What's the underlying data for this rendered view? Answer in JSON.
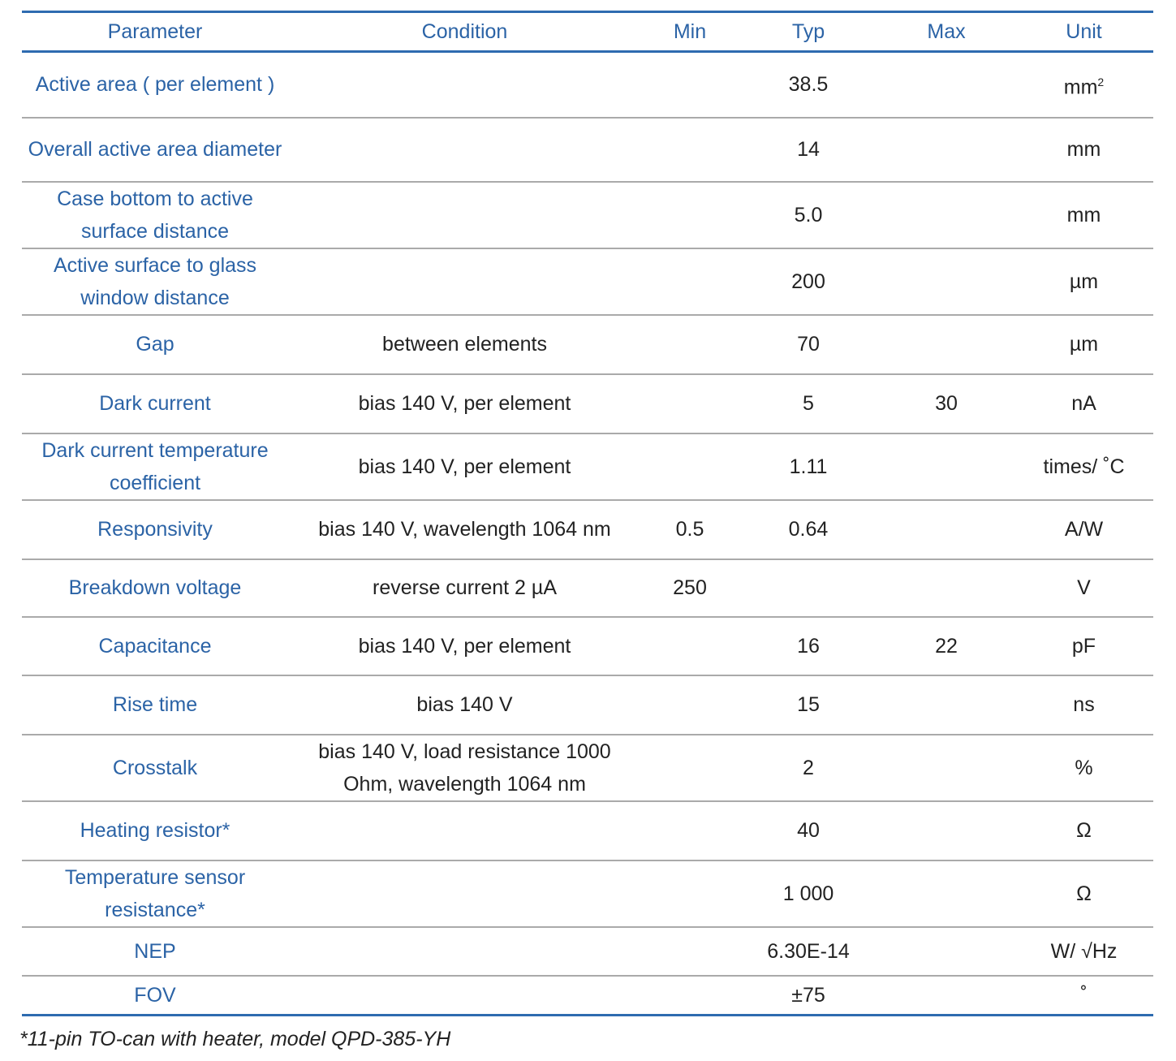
{
  "headers": [
    "Parameter",
    "Condition",
    "Min",
    "Typ",
    "Max",
    "Unit"
  ],
  "rows": [
    {
      "parameter": "Active area ( per element )",
      "condition": "",
      "min": "",
      "typ": "38.5",
      "max": "",
      "unit": "mm",
      "unit_sup": "2"
    },
    {
      "parameter": "Overall active area diameter",
      "condition": "",
      "min": "",
      "typ": "14",
      "max": "",
      "unit": "mm"
    },
    {
      "parameter": "Case bottom to active surface distance",
      "condition": "",
      "min": "",
      "typ": "5.0",
      "max": "",
      "unit": "mm"
    },
    {
      "parameter": "Active surface to glass window distance",
      "condition": "",
      "min": "",
      "typ": "200",
      "max": "",
      "unit": "µm"
    },
    {
      "parameter": "Gap",
      "condition": "between elements",
      "min": "",
      "typ": "70",
      "max": "",
      "unit": "µm"
    },
    {
      "parameter": "Dark current",
      "condition": "bias 140 V, per element",
      "min": "",
      "typ": "5",
      "max": "30",
      "unit": "nA"
    },
    {
      "parameter": "Dark current temperature coefficient",
      "condition": "bias 140 V, per element",
      "min": "",
      "typ": "1.11",
      "max": "",
      "unit": "times/ ˚C"
    },
    {
      "parameter": "Responsivity",
      "condition": "bias 140 V, wavelength 1064 nm",
      "min": "0.5",
      "typ": "0.64",
      "max": "",
      "unit": "A/W"
    },
    {
      "parameter": "Breakdown voltage",
      "condition": "reverse current 2 µA",
      "min": "250",
      "typ": "",
      "max": "",
      "unit": "V"
    },
    {
      "parameter": "Capacitance",
      "condition": "bias 140 V, per element",
      "min": "",
      "typ": "16",
      "max": "22",
      "unit": "pF"
    },
    {
      "parameter": "Rise time",
      "condition": "bias 140 V",
      "min": "",
      "typ": "15",
      "max": "",
      "unit": "ns"
    },
    {
      "parameter": "Crosstalk",
      "condition": "bias 140 V, load resistance 1000 Ohm, wavelength 1064 nm",
      "min": "",
      "typ": "2",
      "max": "",
      "unit": "%"
    },
    {
      "parameter": "Heating resistor*",
      "condition": "",
      "min": "",
      "typ": "40",
      "max": "",
      "unit": "Ω"
    },
    {
      "parameter": "Temperature sensor resistance*",
      "condition": "",
      "min": "",
      "typ": "1 000",
      "max": "",
      "unit": "Ω"
    },
    {
      "parameter": "NEP",
      "condition": "",
      "min": "",
      "typ": "6.30E-14",
      "max": "",
      "unit": "W/ √Hz"
    },
    {
      "parameter": "FOV",
      "condition": "",
      "min": "",
      "typ": "±75",
      "max": "",
      "unit": "˚"
    }
  ],
  "footnote": "*11-pin TO-can with heater, model QPD-385-YH",
  "colors": {
    "header_text": "#2b63a6",
    "rule": "#2e6bb0",
    "row_rule": "#aaaaaa"
  }
}
